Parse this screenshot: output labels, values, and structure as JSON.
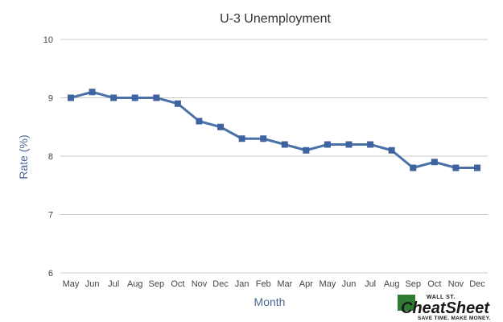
{
  "chart_data": {
    "type": "line",
    "title": "U-3 Unemployment",
    "xlabel": "Month",
    "ylabel": "Rate (%)",
    "ylim": [
      6,
      10
    ],
    "yticks": [
      6,
      7,
      8,
      9,
      10
    ],
    "grid": true,
    "categories": [
      "May",
      "Jun",
      "Jul",
      "Aug",
      "Sep",
      "Oct",
      "Nov",
      "Dec",
      "Jan",
      "Feb",
      "Mar",
      "Apr",
      "May",
      "Jun",
      "Jul",
      "Aug",
      "Sep",
      "Oct",
      "Nov",
      "Dec"
    ],
    "series": [
      {
        "values": [
          9.0,
          9.1,
          9.0,
          9.0,
          9.0,
          8.9,
          8.6,
          8.5,
          8.3,
          8.3,
          8.2,
          8.1,
          8.2,
          8.2,
          8.2,
          8.1,
          7.8,
          7.9,
          7.8,
          7.8
        ]
      }
    ],
    "colors": {
      "series": "#4a72a8",
      "marker": "#3f63a0"
    }
  },
  "logo": {
    "top": "WALL ST.",
    "name": "CheatSheet",
    "tagline": "SAVE TIME. MAKE MONEY."
  }
}
